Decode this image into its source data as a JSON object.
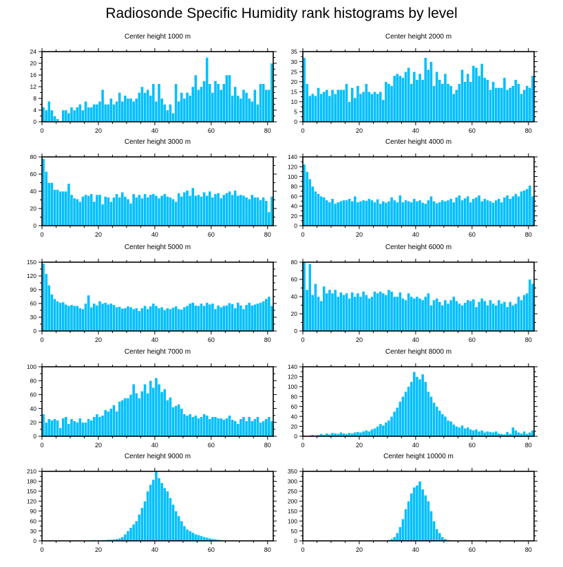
{
  "title": "Radiosonde Specific Humidity rank histograms by level",
  "colors": {
    "bar": "#00bfff",
    "bar_edge": "#ffffff",
    "axis": "#000000",
    "background": "#ffffff"
  },
  "chart_data": [
    {
      "type": "bar",
      "title": "Center height 1000 m",
      "xlabel": "",
      "ylabel": "",
      "xlim": [
        0,
        82
      ],
      "xticks": [
        0,
        20,
        40,
        60,
        80
      ],
      "ylim": [
        0,
        24
      ],
      "yticks": [
        0,
        4,
        8,
        12,
        16,
        20,
        24
      ],
      "values": [
        5,
        4,
        7,
        4,
        2,
        1,
        0,
        4,
        4,
        3,
        5,
        4,
        5,
        6,
        4,
        7,
        5,
        5,
        6,
        6,
        7,
        11,
        6,
        6,
        8,
        6,
        7,
        10,
        7,
        9,
        8,
        8,
        7,
        8,
        10,
        12,
        10,
        11,
        9,
        13,
        7,
        13,
        8,
        6,
        4,
        6,
        3,
        13,
        7,
        10,
        8,
        10,
        9,
        12,
        16,
        11,
        12,
        14,
        22,
        13,
        10,
        14,
        13,
        11,
        13,
        16,
        16,
        9,
        12,
        9,
        8,
        11,
        10,
        8,
        7,
        11,
        6,
        13,
        13,
        11,
        11,
        20
      ]
    },
    {
      "type": "bar",
      "title": "Center height 2000 m",
      "xlabel": "",
      "ylabel": "",
      "xlim": [
        0,
        82
      ],
      "xticks": [
        0,
        20,
        40,
        60,
        80
      ],
      "ylim": [
        0,
        35
      ],
      "yticks": [
        0,
        5,
        10,
        15,
        20,
        25,
        30,
        35
      ],
      "values": [
        32,
        19,
        13,
        14,
        13,
        17,
        14,
        15,
        16,
        13,
        16,
        14,
        16,
        16,
        16,
        19,
        10,
        17,
        12,
        18,
        14,
        15,
        19,
        15,
        14,
        15,
        14,
        15,
        11,
        20,
        19,
        18,
        23,
        24,
        23,
        22,
        25,
        27,
        19,
        25,
        21,
        24,
        21,
        32,
        26,
        30,
        18,
        25,
        21,
        19,
        24,
        19,
        18,
        14,
        16,
        19,
        26,
        20,
        24,
        20,
        28,
        27,
        23,
        29,
        22,
        21,
        16,
        20,
        17,
        17,
        17,
        22,
        16,
        17,
        18,
        21,
        19,
        14,
        16,
        18,
        17,
        23
      ]
    },
    {
      "type": "bar",
      "title": "Center height 3000 m",
      "xlabel": "",
      "ylabel": "",
      "xlim": [
        0,
        82
      ],
      "xticks": [
        0,
        20,
        40,
        60,
        80
      ],
      "ylim": [
        0,
        80
      ],
      "yticks": [
        0,
        20,
        40,
        60,
        80
      ],
      "values": [
        78,
        63,
        50,
        50,
        42,
        42,
        40,
        40,
        40,
        49,
        36,
        32,
        31,
        28,
        34,
        36,
        35,
        37,
        28,
        36,
        36,
        25,
        34,
        33,
        28,
        33,
        37,
        33,
        39,
        34,
        31,
        26,
        37,
        33,
        36,
        32,
        37,
        33,
        36,
        37,
        35,
        32,
        35,
        37,
        34,
        33,
        31,
        28,
        38,
        34,
        39,
        41,
        35,
        44,
        35,
        36,
        34,
        39,
        35,
        40,
        33,
        37,
        38,
        32,
        36,
        38,
        40,
        36,
        41,
        35,
        36,
        35,
        33,
        31,
        36,
        33,
        33,
        30,
        33,
        29,
        16,
        34
      ]
    },
    {
      "type": "bar",
      "title": "Center height 4000 m",
      "xlabel": "",
      "ylabel": "",
      "xlim": [
        0,
        82
      ],
      "xticks": [
        0,
        20,
        40,
        60,
        80
      ],
      "ylim": [
        0,
        140
      ],
      "yticks": [
        0,
        20,
        40,
        60,
        80,
        100,
        120,
        140
      ],
      "values": [
        125,
        110,
        95,
        80,
        70,
        65,
        60,
        58,
        52,
        48,
        55,
        45,
        48,
        50,
        52,
        52,
        55,
        50,
        60,
        48,
        50,
        52,
        51,
        55,
        52,
        48,
        54,
        45,
        50,
        47,
        50,
        58,
        52,
        48,
        62,
        48,
        52,
        50,
        48,
        55,
        50,
        52,
        47,
        45,
        52,
        60,
        50,
        46,
        48,
        52,
        50,
        52,
        55,
        48,
        58,
        62,
        52,
        56,
        60,
        48,
        55,
        58,
        62,
        50,
        55,
        52,
        50,
        47,
        52,
        55,
        48,
        58,
        62,
        55,
        60,
        65,
        60,
        70,
        72,
        75,
        82,
        60
      ]
    },
    {
      "type": "bar",
      "title": "Center height 5000 m",
      "xlabel": "",
      "ylabel": "",
      "xlim": [
        0,
        82
      ],
      "xticks": [
        0,
        20,
        40,
        60,
        80
      ],
      "ylim": [
        0,
        150
      ],
      "yticks": [
        0,
        30,
        60,
        90,
        120,
        150
      ],
      "values": [
        147,
        125,
        100,
        80,
        70,
        65,
        62,
        63,
        58,
        55,
        57,
        55,
        55,
        50,
        48,
        60,
        78,
        52,
        60,
        56,
        65,
        60,
        62,
        58,
        60,
        57,
        52,
        53,
        49,
        50,
        54,
        52,
        48,
        50,
        44,
        50,
        55,
        48,
        54,
        60,
        55,
        50,
        52,
        46,
        50,
        48,
        51,
        54,
        48,
        47,
        52,
        55,
        60,
        62,
        56,
        55,
        60,
        55,
        62,
        58,
        60,
        48,
        56,
        52,
        55,
        56,
        61,
        59,
        50,
        62,
        56,
        48,
        57,
        62,
        56,
        58,
        60,
        62,
        65,
        70,
        75,
        55
      ]
    },
    {
      "type": "bar",
      "title": "Center height 6000 m",
      "xlabel": "",
      "ylabel": "",
      "xlim": [
        0,
        82
      ],
      "xticks": [
        0,
        20,
        40,
        60,
        80
      ],
      "ylim": [
        0,
        80
      ],
      "yticks": [
        0,
        20,
        40,
        60,
        80
      ],
      "values": [
        80,
        48,
        78,
        42,
        55,
        40,
        35,
        52,
        44,
        48,
        44,
        48,
        40,
        45,
        42,
        44,
        38,
        45,
        40,
        44,
        40,
        46,
        42,
        38,
        40,
        46,
        44,
        46,
        44,
        42,
        48,
        46,
        40,
        40,
        45,
        38,
        36,
        44,
        40,
        38,
        40,
        38,
        36,
        40,
        44,
        30,
        36,
        38,
        34,
        30,
        36,
        32,
        36,
        40,
        35,
        32,
        30,
        33,
        36,
        35,
        37,
        28,
        34,
        38,
        35,
        30,
        36,
        32,
        30,
        36,
        32,
        34,
        28,
        34,
        30,
        32,
        40,
        36,
        42,
        44,
        60,
        55
      ]
    },
    {
      "type": "bar",
      "title": "Center height 7000 m",
      "xlabel": "",
      "ylabel": "",
      "xlim": [
        0,
        82
      ],
      "xticks": [
        0,
        20,
        40,
        60,
        80
      ],
      "ylim": [
        0,
        100
      ],
      "yticks": [
        0,
        20,
        40,
        60,
        80,
        100
      ],
      "values": [
        32,
        20,
        25,
        23,
        25,
        23,
        12,
        26,
        28,
        18,
        25,
        22,
        20,
        26,
        20,
        20,
        25,
        23,
        28,
        32,
        28,
        30,
        38,
        36,
        40,
        45,
        36,
        50,
        52,
        55,
        55,
        60,
        75,
        62,
        55,
        65,
        75,
        62,
        80,
        70,
        84,
        75,
        64,
        68,
        52,
        56,
        42,
        44,
        46,
        40,
        32,
        30,
        32,
        28,
        30,
        26,
        28,
        32,
        30,
        25,
        28,
        28,
        26,
        26,
        24,
        26,
        30,
        24,
        22,
        18,
        25,
        28,
        22,
        28,
        22,
        25,
        28,
        20,
        22,
        25,
        28,
        22
      ]
    },
    {
      "type": "bar",
      "title": "Center height 8000 m",
      "xlabel": "",
      "ylabel": "",
      "xlim": [
        0,
        82
      ],
      "xticks": [
        0,
        20,
        40,
        60,
        80
      ],
      "ylim": [
        0,
        140
      ],
      "yticks": [
        0,
        20,
        40,
        60,
        80,
        100,
        120,
        140
      ],
      "values": [
        2,
        1,
        2,
        3,
        2,
        3,
        5,
        3,
        6,
        4,
        7,
        6,
        5,
        8,
        6,
        5,
        7,
        6,
        8,
        9,
        8,
        10,
        12,
        10,
        14,
        16,
        20,
        25,
        22,
        28,
        32,
        40,
        50,
        58,
        70,
        80,
        90,
        100,
        110,
        130,
        120,
        115,
        125,
        110,
        90,
        80,
        68,
        60,
        52,
        45,
        40,
        32,
        30,
        24,
        20,
        18,
        22,
        16,
        18,
        14,
        12,
        14,
        10,
        12,
        8,
        10,
        9,
        8,
        10,
        6,
        5,
        4,
        9,
        5,
        18,
        12,
        8,
        6,
        10,
        5,
        8,
        12
      ]
    },
    {
      "type": "bar",
      "title": "Center height 9000 m",
      "xlabel": "",
      "ylabel": "",
      "xlim": [
        0,
        82
      ],
      "xticks": [
        0,
        20,
        40,
        60,
        80
      ],
      "ylim": [
        0,
        210
      ],
      "yticks": [
        0,
        30,
        60,
        90,
        120,
        150,
        180,
        210
      ],
      "values": [
        0,
        0,
        0,
        0,
        1,
        2,
        0,
        1,
        0,
        2,
        1,
        2,
        1,
        1,
        1,
        2,
        1,
        2,
        3,
        2,
        2,
        3,
        3,
        4,
        4,
        5,
        6,
        8,
        12,
        20,
        30,
        40,
        50,
        60,
        80,
        100,
        120,
        150,
        170,
        185,
        210,
        190,
        175,
        160,
        150,
        130,
        110,
        90,
        75,
        60,
        45,
        35,
        30,
        25,
        20,
        18,
        15,
        12,
        10,
        8,
        6,
        5,
        4,
        3,
        2,
        1,
        1,
        1,
        0,
        1,
        0,
        0,
        0,
        0,
        0,
        0,
        0,
        0,
        0,
        0,
        0,
        0
      ]
    },
    {
      "type": "bar",
      "title": "Center height 10000 m",
      "xlabel": "",
      "ylabel": "",
      "xlim": [
        0,
        82
      ],
      "xticks": [
        0,
        20,
        40,
        60,
        80
      ],
      "ylim": [
        0,
        350
      ],
      "yticks": [
        0,
        50,
        100,
        150,
        200,
        250,
        300,
        350
      ],
      "values": [
        0,
        0,
        0,
        0,
        0,
        0,
        0,
        0,
        0,
        0,
        0,
        0,
        0,
        0,
        0,
        0,
        0,
        0,
        0,
        0,
        0,
        0,
        0,
        0,
        0,
        0,
        0,
        0,
        1,
        2,
        5,
        10,
        20,
        40,
        70,
        110,
        160,
        200,
        240,
        270,
        280,
        300,
        260,
        230,
        200,
        150,
        100,
        60,
        40,
        20,
        10,
        5,
        3,
        2,
        1,
        0,
        0,
        0,
        0,
        0,
        0,
        0,
        0,
        0,
        0,
        0,
        0,
        0,
        0,
        0,
        0,
        0,
        0,
        0,
        0,
        0,
        0,
        0,
        0,
        0,
        0,
        0
      ]
    }
  ]
}
